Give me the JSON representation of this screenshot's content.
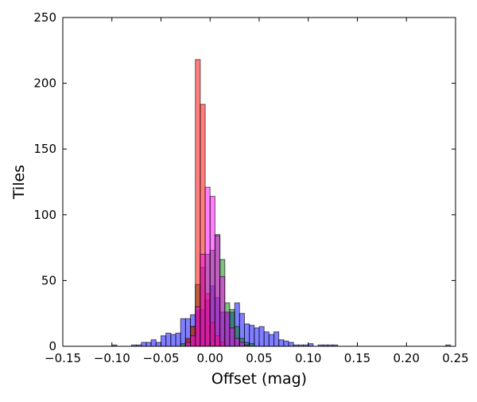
{
  "chart_data": {
    "type": "bar",
    "title": "",
    "xlabel": "Offset (mag)",
    "ylabel": "Tiles",
    "xlim": [
      -0.15,
      0.25
    ],
    "ylim": [
      0,
      250
    ],
    "xticks": [
      -0.15,
      -0.1,
      -0.05,
      0.0,
      0.05,
      0.1,
      0.15,
      0.2,
      0.25
    ],
    "xtick_labels": [
      "−0.15",
      "−0.10",
      "−0.05",
      "0.00",
      "0.05",
      "0.10",
      "0.15",
      "0.20",
      "0.25"
    ],
    "yticks": [
      0,
      50,
      100,
      150,
      200,
      250
    ],
    "ytick_labels": [
      "0",
      "50",
      "100",
      "150",
      "200",
      "250"
    ],
    "grid": false,
    "bin_width": 0.005,
    "series": [
      {
        "color": "#0000ff",
        "opacity": 0.5,
        "bins": [
          [
            -0.1,
            1
          ],
          [
            -0.08,
            1
          ],
          [
            -0.075,
            1
          ],
          [
            -0.07,
            3
          ],
          [
            -0.065,
            3
          ],
          [
            -0.06,
            5
          ],
          [
            -0.055,
            3
          ],
          [
            -0.05,
            8
          ],
          [
            -0.045,
            10
          ],
          [
            -0.04,
            9
          ],
          [
            -0.035,
            10
          ],
          [
            -0.03,
            21
          ],
          [
            -0.025,
            21
          ],
          [
            -0.02,
            24
          ],
          [
            -0.015,
            27
          ],
          [
            -0.01,
            28
          ],
          [
            -0.005,
            35
          ],
          [
            0.0,
            46
          ],
          [
            0.005,
            37
          ],
          [
            0.01,
            26
          ],
          [
            0.015,
            25
          ],
          [
            0.02,
            26
          ],
          [
            0.025,
            33
          ],
          [
            0.03,
            25
          ],
          [
            0.035,
            17
          ],
          [
            0.04,
            16
          ],
          [
            0.045,
            14
          ],
          [
            0.05,
            15
          ],
          [
            0.055,
            11
          ],
          [
            0.06,
            9
          ],
          [
            0.065,
            11
          ],
          [
            0.07,
            5
          ],
          [
            0.075,
            4
          ],
          [
            0.08,
            3
          ],
          [
            0.085,
            1
          ],
          [
            0.09,
            1
          ],
          [
            0.095,
            1
          ],
          [
            0.1,
            2
          ],
          [
            0.11,
            1
          ],
          [
            0.115,
            1
          ],
          [
            0.12,
            1
          ],
          [
            0.125,
            1
          ],
          [
            0.24,
            1
          ]
        ]
      },
      {
        "color": "#008000",
        "opacity": 0.5,
        "bins": [
          [
            -0.03,
            2
          ],
          [
            -0.025,
            5
          ],
          [
            -0.02,
            15
          ],
          [
            -0.015,
            47
          ],
          [
            -0.01,
            60
          ],
          [
            -0.005,
            70
          ],
          [
            0.0,
            73
          ],
          [
            0.005,
            85
          ],
          [
            0.01,
            66
          ],
          [
            0.015,
            33
          ],
          [
            0.02,
            28
          ],
          [
            0.025,
            15
          ],
          [
            0.03,
            6
          ],
          [
            0.035,
            3
          ],
          [
            0.04,
            2
          ]
        ]
      },
      {
        "color": "#ff0000",
        "opacity": 0.5,
        "bins": [
          [
            -0.025,
            6
          ],
          [
            -0.02,
            15
          ],
          [
            -0.015,
            218
          ],
          [
            -0.01,
            184
          ],
          [
            -0.005,
            40
          ],
          [
            0.0,
            18
          ],
          [
            0.005,
            8
          ],
          [
            0.01,
            3
          ]
        ]
      },
      {
        "color": "#ff00ff",
        "opacity": 0.5,
        "bins": [
          [
            -0.025,
            3
          ],
          [
            -0.02,
            8
          ],
          [
            -0.015,
            30
          ],
          [
            -0.01,
            70
          ],
          [
            -0.005,
            121
          ],
          [
            0.0,
            114
          ],
          [
            0.005,
            84
          ],
          [
            0.01,
            53
          ],
          [
            0.015,
            26
          ],
          [
            0.02,
            14
          ],
          [
            0.025,
            6
          ],
          [
            0.03,
            3
          ],
          [
            0.035,
            1
          ]
        ]
      }
    ]
  }
}
